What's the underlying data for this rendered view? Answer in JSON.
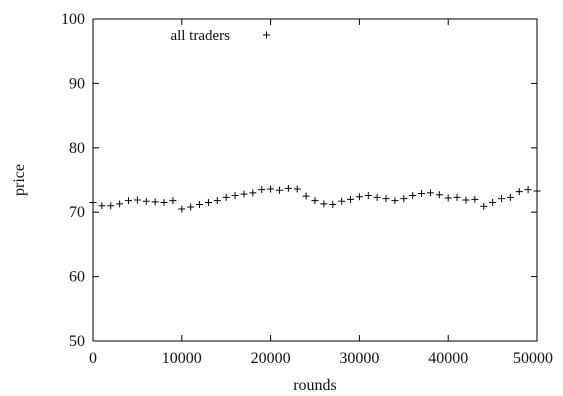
{
  "chart_data": {
    "type": "scatter",
    "title": "",
    "xlabel": "rounds",
    "ylabel": "price",
    "xlim": [
      0,
      50000
    ],
    "ylim": [
      50,
      100
    ],
    "x_ticks": [
      "0",
      "10000",
      "20000",
      "30000",
      "40000",
      "50000"
    ],
    "y_ticks": [
      "50",
      "60",
      "70",
      "80",
      "90",
      "100"
    ],
    "grid": false,
    "legend_position": "top-left",
    "marker": "+",
    "color": "#000000",
    "series": [
      {
        "name": "all traders",
        "x": [
          0,
          1000,
          2000,
          3000,
          4000,
          5000,
          6000,
          7000,
          8000,
          9000,
          10000,
          11000,
          12000,
          13000,
          14000,
          15000,
          16000,
          17000,
          18000,
          19000,
          20000,
          21000,
          22000,
          23000,
          24000,
          25000,
          26000,
          27000,
          28000,
          29000,
          30000,
          31000,
          32000,
          33000,
          34000,
          35000,
          36000,
          37000,
          38000,
          39000,
          40000,
          41000,
          42000,
          43000,
          44000,
          45000,
          46000,
          47000,
          48000,
          49000,
          50000
        ],
        "values": [
          71.5,
          71.0,
          71.0,
          71.3,
          71.8,
          71.9,
          71.7,
          71.6,
          71.5,
          71.8,
          70.5,
          70.8,
          71.2,
          71.5,
          71.8,
          72.3,
          72.6,
          72.8,
          73.0,
          73.5,
          73.6,
          73.4,
          73.7,
          73.6,
          72.5,
          71.8,
          71.3,
          71.2,
          71.7,
          72.0,
          72.4,
          72.6,
          72.3,
          72.1,
          71.8,
          72.1,
          72.6,
          72.9,
          73.0,
          72.7,
          72.2,
          72.3,
          71.9,
          72.0,
          70.9,
          71.5,
          72.1,
          72.3,
          73.2,
          73.5,
          73.3
        ]
      }
    ]
  }
}
